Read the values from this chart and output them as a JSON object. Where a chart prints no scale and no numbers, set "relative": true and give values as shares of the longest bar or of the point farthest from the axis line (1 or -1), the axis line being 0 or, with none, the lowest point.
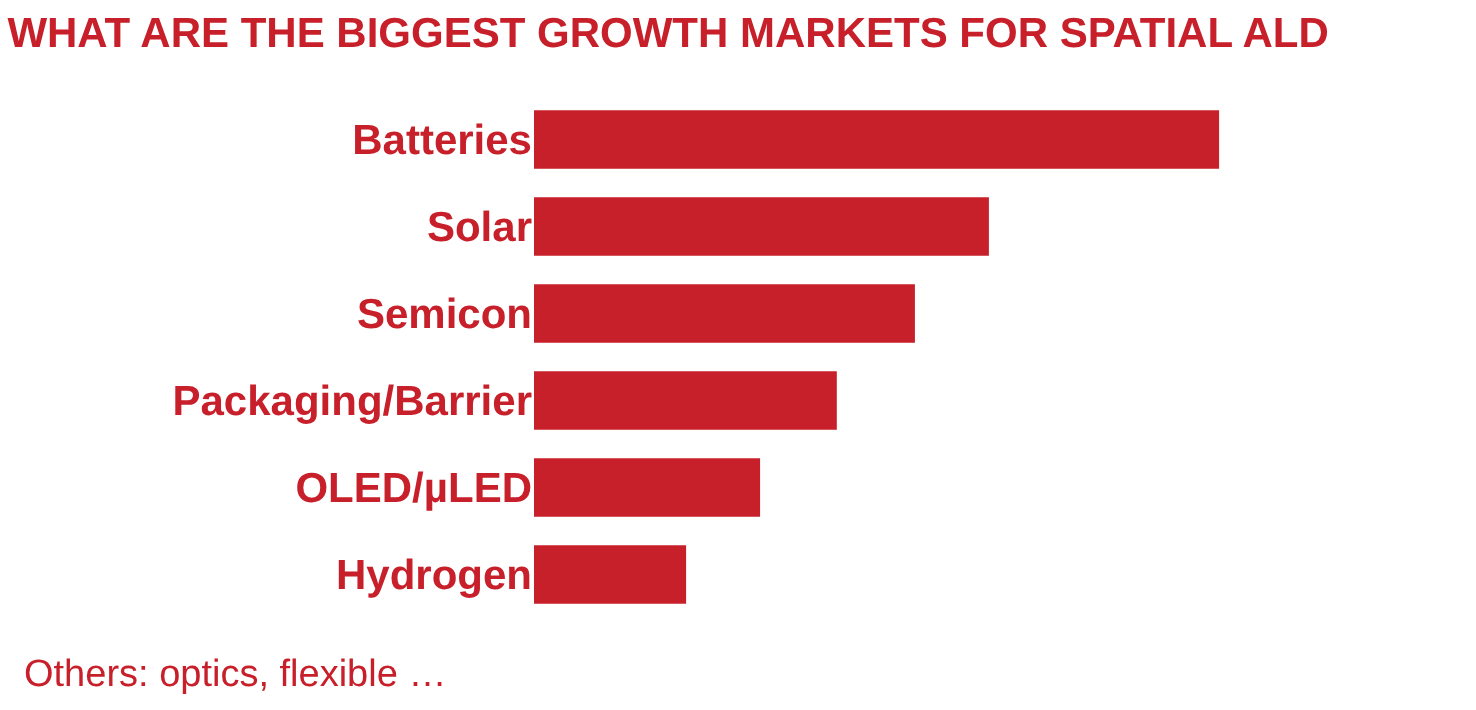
{
  "chart_data": {
    "type": "bar",
    "orientation": "horizontal",
    "relative": true,
    "title": "WHAT ARE THE BIGGEST GROWTH MARKETS FOR SPATIAL ALD",
    "categories": [
      "Batteries",
      "Solar",
      "Semicon",
      "Packaging/Barrier",
      "OLED/µLED",
      "Hydrogen"
    ],
    "values": [
      1,
      0.664,
      0.556,
      0.442,
      0.33,
      0.222
    ],
    "color": "#c8202a",
    "annotations": [
      "Others: optics, flexible …"
    ],
    "legend": false
  }
}
